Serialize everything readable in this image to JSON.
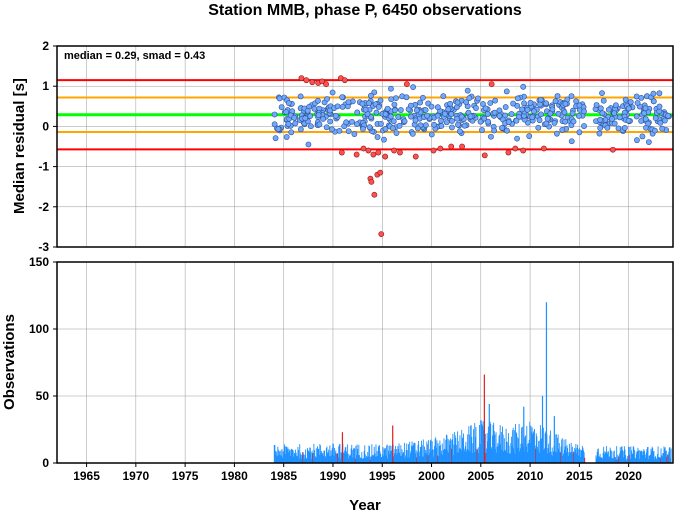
{
  "title": "Station MMB, phase P, 6450 observations",
  "colors": {
    "outlier_line": "#ff0000",
    "inner_line": "#ffa500",
    "median_line": "#00ff00",
    "point_fill": "#6fa8ff",
    "point_stroke": "#2f4f8f",
    "outlier_point": "#ff5050",
    "bar": "#1e90ff",
    "bar_outlier": "#dd2222",
    "grid": "#999999"
  },
  "chart_data": [
    {
      "type": "scatter",
      "name": "residual_panel",
      "ylabel": "Median residual [s]",
      "annotation": "median = 0.29, smad = 0.43",
      "xlim": [
        1962,
        2024.5
      ],
      "ylim": [
        -3,
        2
      ],
      "yticks": [
        -3,
        -2,
        -1,
        0,
        1,
        2
      ],
      "median": 0.29,
      "hlines": [
        {
          "y": 1.15,
          "kind": "outlier"
        },
        {
          "y": 0.72,
          "kind": "inner"
        },
        {
          "y": 0.29,
          "kind": "median"
        },
        {
          "y": -0.14,
          "kind": "inner"
        },
        {
          "y": -0.57,
          "kind": "outlier"
        }
      ],
      "outliers": [
        [
          1986.8,
          1.2
        ],
        [
          1987.3,
          1.15
        ],
        [
          1987.9,
          1.1
        ],
        [
          1988.5,
          1.08
        ],
        [
          1988.9,
          1.12
        ],
        [
          1989.3,
          1.05
        ],
        [
          1990.8,
          1.2
        ],
        [
          1991.2,
          1.15
        ],
        [
          1997.5,
          1.05
        ],
        [
          2006.1,
          1.05
        ],
        [
          1990.9,
          -0.65
        ],
        [
          1992.4,
          -0.7
        ],
        [
          1993.1,
          -0.55
        ],
        [
          1993.6,
          -0.6
        ],
        [
          1994.1,
          -0.7
        ],
        [
          1994.6,
          -0.65
        ],
        [
          1995.3,
          -0.75
        ],
        [
          1996.2,
          -0.6
        ],
        [
          1996.8,
          -0.65
        ],
        [
          1998.4,
          -0.75
        ],
        [
          2000.2,
          -0.6
        ],
        [
          2000.9,
          -0.55
        ],
        [
          2002.0,
          -0.5
        ],
        [
          2003.1,
          -0.5
        ],
        [
          2005.4,
          -0.72
        ],
        [
          2007.8,
          -0.65
        ],
        [
          2008.5,
          -0.55
        ],
        [
          2009.3,
          -0.6
        ],
        [
          2011.4,
          -0.55
        ],
        [
          2018.4,
          -0.58
        ],
        [
          1993.8,
          -1.3
        ],
        [
          1993.9,
          -1.38
        ],
        [
          1994.5,
          -1.2
        ],
        [
          1994.8,
          -1.15
        ],
        [
          1994.2,
          -1.7
        ],
        [
          1994.9,
          -2.68
        ]
      ],
      "inliers": {
        "x_start": 1984.0,
        "x_end": 2024.3,
        "count": 560,
        "gaps": [
          [
            2015.5,
            2016.6
          ]
        ],
        "range": [
          -0.45,
          1.0
        ]
      }
    },
    {
      "type": "bar",
      "name": "observations_panel",
      "xlabel": "Year",
      "ylabel": "Observations",
      "xlim": [
        1962,
        2024.5
      ],
      "ylim": [
        0,
        150
      ],
      "yticks": [
        0,
        50,
        100,
        150
      ],
      "xticks": [
        1965,
        1970,
        1975,
        1980,
        1985,
        1990,
        1995,
        2000,
        2005,
        2010,
        2015,
        2020
      ],
      "x_start": 1984.0,
      "x_end": 2024.3,
      "gaps": [
        [
          2015.5,
          2016.6
        ]
      ],
      "profile": [
        [
          1984,
          12
        ],
        [
          1990,
          13
        ],
        [
          1995,
          12
        ],
        [
          2000,
          16
        ],
        [
          2003,
          22
        ],
        [
          2005,
          28
        ],
        [
          2008,
          24
        ],
        [
          2010,
          30
        ],
        [
          2012,
          22
        ],
        [
          2014,
          14
        ],
        [
          2018,
          11
        ],
        [
          2024,
          11
        ]
      ],
      "peaks": [
        {
          "x": 2011.6,
          "y": 120,
          "outlier": false
        },
        {
          "x": 2005.3,
          "y": 66,
          "outlier": true
        },
        {
          "x": 2005.8,
          "y": 44,
          "outlier": false
        },
        {
          "x": 2011.2,
          "y": 50,
          "outlier": false
        },
        {
          "x": 2009.3,
          "y": 42,
          "outlier": false
        },
        {
          "x": 1996.0,
          "y": 28,
          "outlier": true
        },
        {
          "x": 1990.9,
          "y": 23,
          "outlier": true
        },
        {
          "x": 2012.4,
          "y": 35,
          "outlier": false
        }
      ]
    }
  ]
}
